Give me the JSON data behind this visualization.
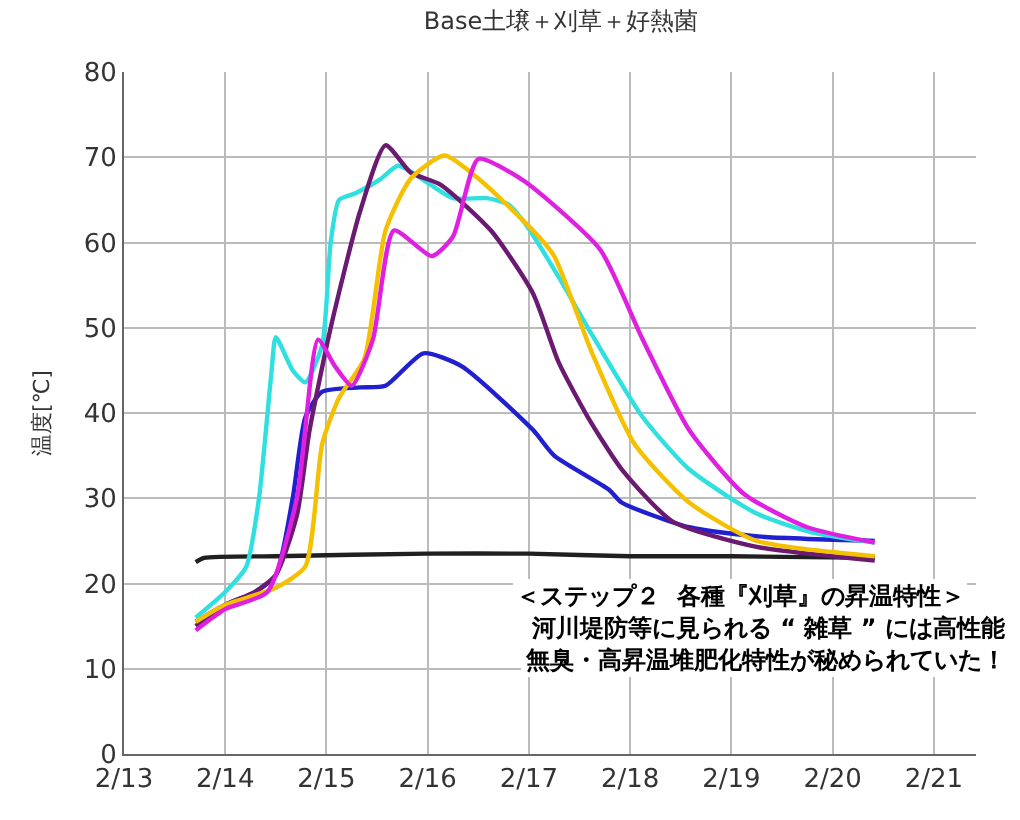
{
  "chart_data": {
    "type": "line",
    "title": "Base土壌＋刈草＋好熱菌",
    "ylabel": "温度[℃]",
    "xlim": [
      "--02-13",
      "--02-21T10:00"
    ],
    "xticks": [
      {
        "value": "--02-13",
        "label": "2/13"
      },
      {
        "value": "--02-14",
        "label": "2/14"
      },
      {
        "value": "--02-15",
        "label": "2/15"
      },
      {
        "value": "--02-16",
        "label": "2/16"
      },
      {
        "value": "--02-17",
        "label": "2/17"
      },
      {
        "value": "--02-18",
        "label": "2/18"
      },
      {
        "value": "--02-19",
        "label": "2/19"
      },
      {
        "value": "--02-20",
        "label": "2/20"
      },
      {
        "value": "--02-21",
        "label": "2/21"
      }
    ],
    "ylim": [
      0,
      80
    ],
    "yticks": [
      0,
      10,
      20,
      30,
      40,
      50,
      60,
      70,
      80
    ],
    "grid": true,
    "marker": "none",
    "line_style": "solid",
    "series": [
      {
        "color": "#202020",
        "x": [
          "--02-13T17:00",
          "--02-13T19:00",
          "--02-14T12:00",
          "--02-16T00:00",
          "--02-17T00:00",
          "--02-18T00:00",
          "--02-19T00:00",
          "--02-20T10:00"
        ],
        "values": [
          22.5,
          23,
          23.2,
          23.5,
          23.5,
          23.2,
          23.2,
          23
        ]
      },
      {
        "color": "#2020d0",
        "x": [
          "--02-13T17:00",
          "--02-14T00:00",
          "--02-14T07:00",
          "--02-14T12:00",
          "--02-14T16:00",
          "--02-14T19:00",
          "--02-14T23:00",
          "--02-15T08:00",
          "--02-15T14:00",
          "--02-15T23:00",
          "--02-16T08:00",
          "--02-17T01:00",
          "--02-17T06:00",
          "--02-17T19:00",
          "--02-17T22:00",
          "--02-18T14:00",
          "--02-19T07:00",
          "--02-20T10:00"
        ],
        "values": [
          15.5,
          17.5,
          19,
          21,
          30,
          39.5,
          42.5,
          43,
          43.2,
          47,
          45.5,
          38,
          35,
          31,
          29.5,
          26.6,
          25.5,
          25
        ]
      },
      {
        "color": "#30e0e0",
        "x": [
          "--02-13T17:00",
          "--02-14T00:00",
          "--02-14T05:00",
          "--02-14T08:00",
          "--02-14T11:00",
          "--02-14T12:00",
          "--02-14T16:00",
          "--02-14T19:00",
          "--02-14T23:00",
          "--02-15T01:00",
          "--02-15T03:00",
          "--02-15T07:00",
          "--02-15T13:00",
          "--02-15T17:00",
          "--02-16T00:00",
          "--02-16T06:00",
          "--02-16T14:00",
          "--02-16T19:00",
          "--02-16T23:00",
          "--02-17T07:00",
          "--02-17T14:00",
          "--02-18T03:00",
          "--02-18T14:00",
          "--02-19T06:00",
          "--02-19T19:00",
          "--02-20T10:00"
        ],
        "values": [
          16,
          19,
          22,
          30,
          45,
          48.9,
          45,
          43.6,
          48,
          60,
          65,
          65.8,
          67.5,
          69,
          67,
          65.2,
          65.2,
          64.5,
          62.3,
          56,
          50,
          39.5,
          33.4,
          28.2,
          26,
          24.8
        ]
      },
      {
        "color": "#6a1a70",
        "x": [
          "--02-13T17:00",
          "--02-14T00:00",
          "--02-14T07:00",
          "--02-14T12:00",
          "--02-14T17:00",
          "--02-14T20:00",
          "--02-15T01:00",
          "--02-15T08:00",
          "--02-15T14:00",
          "--02-15T20:00",
          "--02-16T03:00",
          "--02-16T15:00",
          "--02-17T01:00",
          "--02-17T07:00",
          "--02-17T14:00",
          "--02-17T22:00",
          "--02-18T10:00",
          "--02-19T06:00",
          "--02-20T10:00"
        ],
        "values": [
          15,
          17.5,
          19,
          21,
          28,
          38,
          50,
          63.7,
          71.4,
          68.2,
          66.8,
          61.4,
          54,
          46,
          39.5,
          33.4,
          27.3,
          24.3,
          22.7
        ]
      },
      {
        "color": "#f5c000",
        "x": [
          "--02-13T17:00",
          "--02-14T00:00",
          "--02-14T12:00",
          "--02-14T19:00",
          "--02-14T23:00",
          "--02-15T03:00",
          "--02-15T09:00",
          "--02-15T14:00",
          "--02-15T20:00",
          "--02-16T04:00",
          "--02-16T12:00",
          "--02-17T01:00",
          "--02-17T06:00",
          "--02-17T15:00",
          "--02-18T01:00",
          "--02-18T14:00",
          "--02-19T06:00",
          "--02-20T10:00"
        ],
        "values": [
          15.5,
          17.5,
          19.5,
          22,
          36.4,
          41.8,
          46.4,
          61.4,
          67.5,
          70.2,
          67.5,
          61.4,
          58.4,
          47,
          36.4,
          29.5,
          25,
          23.2
        ]
      },
      {
        "color": "#e020e0",
        "x": [
          "--02-13T17:00",
          "--02-14T00:00",
          "--02-14T10:00",
          "--02-14T17:00",
          "--02-14T22:00",
          "--02-15T02:00",
          "--02-15T06:00",
          "--02-15T11:00",
          "--02-15T16:00",
          "--02-16T01:00",
          "--02-16T06:00",
          "--02-16T12:00",
          "--02-16T22:00",
          "--02-17T04:00",
          "--02-17T17:00",
          "--02-18T03:00",
          "--02-18T14:00",
          "--02-19T03:00",
          "--02-19T18:00",
          "--02-20T10:00"
        ],
        "values": [
          14.5,
          17,
          19,
          30,
          48.6,
          45.5,
          43.2,
          48.6,
          61.4,
          58.4,
          60.7,
          69.8,
          67.5,
          65.2,
          59.1,
          48.6,
          38,
          30.5,
          26.6,
          24.8
        ]
      }
    ],
    "annotations": [
      "＜ステップ２  各種『刈草』の昇温特性＞",
      "河川堤防等に見られる “ 雑草 ” には高性能",
      "無臭・高昇温堆肥化特性が秘められていた！"
    ]
  }
}
